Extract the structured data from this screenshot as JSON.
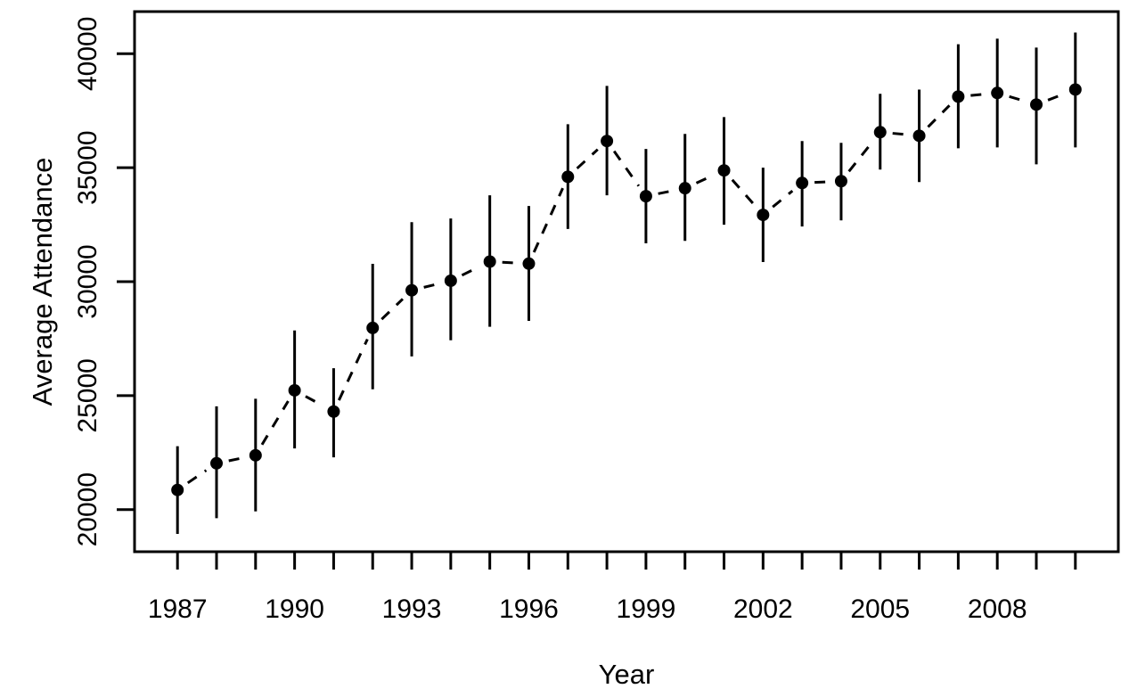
{
  "chart_data": {
    "type": "line",
    "title": "",
    "xlabel": "Year",
    "ylabel": "Average Attendance",
    "legend": null,
    "grid": false,
    "xlim": [
      1985.9,
      2011.1
    ],
    "ylim": [
      18150,
      41850
    ],
    "x_tick_years_all": [
      1987,
      1988,
      1989,
      1990,
      1991,
      1992,
      1993,
      1994,
      1995,
      1996,
      1997,
      1998,
      1999,
      2000,
      2001,
      2002,
      2003,
      2004,
      2005,
      2006,
      2007,
      2008,
      2009,
      2010
    ],
    "x_tick_labels": [
      1987,
      1990,
      1993,
      1996,
      1999,
      2002,
      2005,
      2008
    ],
    "y_ticks": [
      20000,
      25000,
      30000,
      35000,
      40000
    ],
    "series": [
      {
        "name": "average-attendance",
        "marker": "filled-circle",
        "line_style": "dashed",
        "color": "#000000",
        "x": [
          1987,
          1988,
          1989,
          1990,
          1991,
          1992,
          1993,
          1994,
          1995,
          1996,
          1997,
          1998,
          1999,
          2000,
          2001,
          2002,
          2003,
          2004,
          2005,
          2006,
          2007,
          2008,
          2009,
          2010
        ],
        "y": [
          20860,
          22030,
          22380,
          25230,
          24300,
          27970,
          29620,
          30040,
          30880,
          30790,
          34600,
          36170,
          33750,
          34100,
          34880,
          32930,
          34330,
          34410,
          36560,
          36400,
          38120,
          38280,
          37770,
          38430
        ],
        "error_low": [
          18930,
          19620,
          19920,
          22680,
          22290,
          25280,
          26720,
          27430,
          28020,
          28280,
          32310,
          33790,
          31680,
          31790,
          32500,
          30860,
          32420,
          32690,
          34920,
          34370,
          35850,
          35890,
          35150,
          35890
        ],
        "error_high": [
          22780,
          24530,
          24860,
          27860,
          26200,
          30780,
          32610,
          32770,
          33790,
          33320,
          36910,
          38590,
          35820,
          36480,
          37220,
          35000,
          36170,
          36090,
          38240,
          38430,
          40420,
          40660,
          40270,
          40930
        ]
      }
    ],
    "colors": {
      "foreground": "#000000",
      "background": "#ffffff"
    }
  }
}
